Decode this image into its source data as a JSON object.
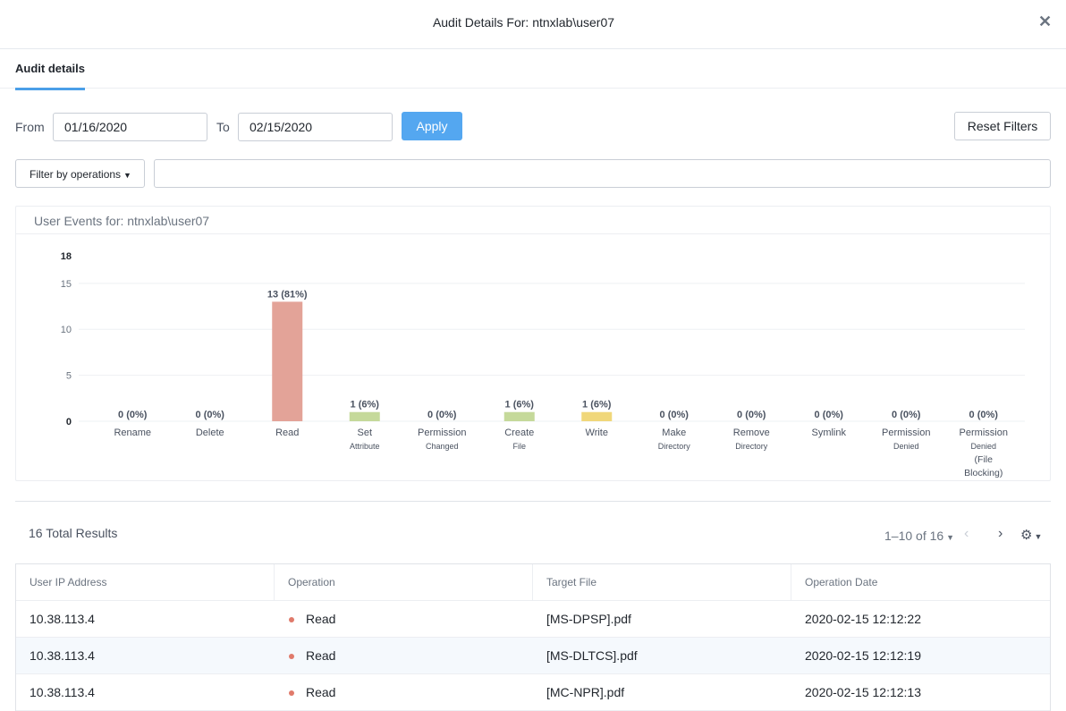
{
  "header": {
    "title": "Audit Details For: ntnxlab\\user07"
  },
  "tabs": [
    {
      "label": "Audit details"
    }
  ],
  "filters": {
    "from_label": "From",
    "from_value": "01/16/2020",
    "to_label": "To",
    "to_value": "02/15/2020",
    "apply_label": "Apply",
    "reset_label": "Reset Filters",
    "operations_dropdown": "Filter by operations",
    "search_value": ""
  },
  "chart": {
    "title": "User Events for: ntnxlab\\user07"
  },
  "chart_data": {
    "type": "bar",
    "ylim": [
      0,
      18
    ],
    "yticks": [
      0,
      5,
      10,
      15,
      18
    ],
    "categories": [
      {
        "label": "Rename",
        "sub": []
      },
      {
        "label": "Delete",
        "sub": []
      },
      {
        "label": "Read",
        "sub": []
      },
      {
        "label": "Set",
        "sub": [
          "Attribute"
        ]
      },
      {
        "label": "Permission",
        "sub": [
          "Changed"
        ]
      },
      {
        "label": "Create",
        "sub": [
          "File"
        ]
      },
      {
        "label": "Write",
        "sub": []
      },
      {
        "label": "Make",
        "sub": [
          "Directory"
        ]
      },
      {
        "label": "Remove",
        "sub": [
          "Directory"
        ]
      },
      {
        "label": "Symlink",
        "sub": []
      },
      {
        "label": "Permission",
        "sub": [
          "Denied"
        ]
      },
      {
        "label": "Permission",
        "sub": [
          "Denied",
          "(File",
          "Blocking)"
        ]
      }
    ],
    "values": [
      0,
      0,
      13,
      1,
      0,
      1,
      1,
      0,
      0,
      0,
      0,
      0
    ],
    "data_labels": [
      "0 (0%)",
      "0 (0%)",
      "13 (81%)",
      "1 (6%)",
      "0 (0%)",
      "1 (6%)",
      "1 (6%)",
      "0 (0%)",
      "0 (0%)",
      "0 (0%)",
      "0 (0%)",
      "0 (0%)"
    ],
    "colors": [
      "#e3a398",
      "#e3a398",
      "#e3a398",
      "#c5d99a",
      "#c5d99a",
      "#c5d99a",
      "#f0d77a",
      "#c5d99a",
      "#c5d99a",
      "#c5d99a",
      "#c5d99a",
      "#c5d99a"
    ],
    "grid": true
  },
  "results": {
    "total_label": "16 Total Results",
    "pager_label": "1–10 of 16"
  },
  "table": {
    "columns": [
      "User IP Address",
      "Operation",
      "Target File",
      "Operation Date"
    ],
    "rows": [
      [
        "10.38.113.4",
        "Read",
        "[MS-DPSP].pdf",
        "2020-02-15 12:12:22"
      ],
      [
        "10.38.113.4",
        "Read",
        "[MS-DLTCS].pdf",
        "2020-02-15 12:12:19"
      ],
      [
        "10.38.113.4",
        "Read",
        "[MC-NPR].pdf",
        "2020-02-15 12:12:13"
      ]
    ],
    "status_color": "#e07a6b"
  },
  "icons": {
    "close": "close-icon",
    "caret": "chevron-down-icon",
    "prev": "chevron-left-icon",
    "next": "chevron-right-icon",
    "settings": "gear-icon"
  }
}
